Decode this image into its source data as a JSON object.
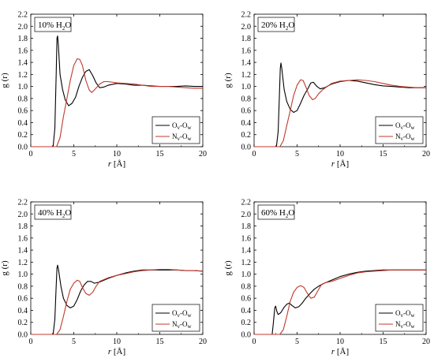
{
  "chart_data": [
    {
      "type": "line",
      "label_prefix": "10% H",
      "label_sub": "2",
      "label_suffix": "O",
      "xlabel_italic": "r",
      "xlabel_rest": " [Å]",
      "ylabel": "g (r)",
      "xlim": [
        0,
        20
      ],
      "ylim": [
        0,
        2.2
      ],
      "xticks": [
        "0",
        "5",
        "10",
        "15",
        "20"
      ],
      "yticks": [
        "0.0",
        "0.2",
        "0.4",
        "0.6",
        "0.8",
        "1.0",
        "1.2",
        "1.4",
        "1.6",
        "1.8",
        "2.0",
        "2.2"
      ],
      "legend_position": "lower-right",
      "series": [
        {
          "name_main": "O",
          "name_sub1": "v",
          "name_mid": "-O",
          "name_sub2": "w",
          "color": "#000000",
          "points": [
            [
              0,
              0
            ],
            [
              2.6,
              0
            ],
            [
              2.8,
              0.3
            ],
            [
              2.95,
              1.2
            ],
            [
              3.05,
              1.8
            ],
            [
              3.12,
              1.84
            ],
            [
              3.2,
              1.7
            ],
            [
              3.4,
              1.2
            ],
            [
              3.7,
              0.95
            ],
            [
              4.0,
              0.78
            ],
            [
              4.4,
              0.68
            ],
            [
              4.8,
              0.72
            ],
            [
              5.2,
              0.82
            ],
            [
              5.6,
              1.0
            ],
            [
              6.0,
              1.15
            ],
            [
              6.4,
              1.25
            ],
            [
              6.8,
              1.28
            ],
            [
              7.2,
              1.18
            ],
            [
              7.6,
              1.06
            ],
            [
              8.0,
              0.98
            ],
            [
              8.5,
              0.99
            ],
            [
              9.0,
              1.02
            ],
            [
              10,
              1.05
            ],
            [
              11,
              1.04
            ],
            [
              12,
              1.02
            ],
            [
              13,
              1.02
            ],
            [
              14,
              1.01
            ],
            [
              15,
              1.0
            ],
            [
              16,
              1.0
            ],
            [
              17,
              1.0
            ],
            [
              18,
              1.01
            ],
            [
              19,
              1.0
            ],
            [
              20,
              1.0
            ]
          ]
        },
        {
          "name_main": "N",
          "name_sub1": "v",
          "name_mid": "-O",
          "name_sub2": "w",
          "color": "#c0392b",
          "points": [
            [
              0,
              0
            ],
            [
              3.0,
              0
            ],
            [
              3.4,
              0.15
            ],
            [
              3.8,
              0.5
            ],
            [
              4.2,
              0.8
            ],
            [
              4.6,
              1.1
            ],
            [
              5.0,
              1.35
            ],
            [
              5.4,
              1.46
            ],
            [
              5.7,
              1.45
            ],
            [
              6.0,
              1.35
            ],
            [
              6.4,
              1.1
            ],
            [
              6.8,
              0.94
            ],
            [
              7.1,
              0.9
            ],
            [
              7.5,
              0.96
            ],
            [
              8.0,
              1.04
            ],
            [
              8.5,
              1.08
            ],
            [
              9,
              1.08
            ],
            [
              10,
              1.06
            ],
            [
              11,
              1.05
            ],
            [
              12,
              1.04
            ],
            [
              13,
              1.02
            ],
            [
              14,
              1.0
            ],
            [
              15,
              1.0
            ],
            [
              16,
              1.0
            ],
            [
              17,
              0.99
            ],
            [
              18,
              0.98
            ],
            [
              19,
              0.97
            ],
            [
              20,
              0.97
            ]
          ]
        }
      ]
    },
    {
      "type": "line",
      "label_prefix": "20% H",
      "label_sub": "2",
      "label_suffix": "O",
      "xlabel_italic": "r",
      "xlabel_rest": " [Å]",
      "ylabel": "g (r)",
      "xlim": [
        0,
        20
      ],
      "ylim": [
        0,
        2.2
      ],
      "xticks": [
        "0",
        "5",
        "10",
        "15",
        "20"
      ],
      "yticks": [
        "0.0",
        "0.2",
        "0.4",
        "0.6",
        "0.8",
        "1.0",
        "1.2",
        "1.4",
        "1.6",
        "1.8",
        "2.0",
        "2.2"
      ],
      "legend_position": "lower-right",
      "series": [
        {
          "name_main": "O",
          "name_sub1": "v",
          "name_mid": "-O",
          "name_sub2": "w",
          "color": "#000000",
          "points": [
            [
              0,
              0
            ],
            [
              2.6,
              0
            ],
            [
              2.8,
              0.25
            ],
            [
              2.95,
              0.9
            ],
            [
              3.05,
              1.3
            ],
            [
              3.12,
              1.39
            ],
            [
              3.22,
              1.3
            ],
            [
              3.5,
              0.95
            ],
            [
              3.8,
              0.75
            ],
            [
              4.2,
              0.62
            ],
            [
              4.6,
              0.57
            ],
            [
              5.0,
              0.6
            ],
            [
              5.4,
              0.72
            ],
            [
              5.8,
              0.85
            ],
            [
              6.2,
              0.95
            ],
            [
              6.6,
              1.06
            ],
            [
              6.9,
              1.07
            ],
            [
              7.3,
              1.0
            ],
            [
              7.7,
              0.96
            ],
            [
              8.2,
              0.98
            ],
            [
              9,
              1.04
            ],
            [
              10,
              1.08
            ],
            [
              11,
              1.1
            ],
            [
              12,
              1.09
            ],
            [
              13,
              1.06
            ],
            [
              14,
              1.03
            ],
            [
              15,
              1.01
            ],
            [
              16,
              1.0
            ],
            [
              17,
              0.99
            ],
            [
              18,
              0.98
            ],
            [
              19,
              0.98
            ],
            [
              20,
              0.98
            ]
          ]
        },
        {
          "name_main": "N",
          "name_sub1": "v",
          "name_mid": "-O",
          "name_sub2": "w",
          "color": "#c0392b",
          "points": [
            [
              0,
              0
            ],
            [
              3.0,
              0
            ],
            [
              3.4,
              0.1
            ],
            [
              3.8,
              0.35
            ],
            [
              4.2,
              0.6
            ],
            [
              4.6,
              0.85
            ],
            [
              5.0,
              1.02
            ],
            [
              5.4,
              1.11
            ],
            [
              5.7,
              1.1
            ],
            [
              6.0,
              1.0
            ],
            [
              6.4,
              0.85
            ],
            [
              6.8,
              0.78
            ],
            [
              7.1,
              0.8
            ],
            [
              7.5,
              0.88
            ],
            [
              8,
              0.95
            ],
            [
              9,
              1.05
            ],
            [
              10,
              1.09
            ],
            [
              11,
              1.1
            ],
            [
              12,
              1.11
            ],
            [
              13,
              1.1
            ],
            [
              14,
              1.08
            ],
            [
              15,
              1.05
            ],
            [
              16,
              1.02
            ],
            [
              17,
              1.0
            ],
            [
              18,
              0.99
            ],
            [
              19,
              0.98
            ],
            [
              20,
              0.98
            ]
          ]
        }
      ]
    },
    {
      "type": "line",
      "label_prefix": "40% H",
      "label_sub": "2",
      "label_suffix": "O",
      "xlabel_italic": "r",
      "xlabel_rest": " [Å]",
      "ylabel": "g (r)",
      "xlim": [
        0,
        20
      ],
      "ylim": [
        0,
        2.2
      ],
      "xticks": [
        "0",
        "5",
        "10",
        "15",
        "20"
      ],
      "yticks": [
        "0.0",
        "0.2",
        "0.4",
        "0.6",
        "0.8",
        "1.0",
        "1.2",
        "1.4",
        "1.6",
        "1.8",
        "2.0",
        "2.2"
      ],
      "legend_position": "lower-right",
      "series": [
        {
          "name_main": "O",
          "name_sub1": "v",
          "name_mid": "-O",
          "name_sub2": "w",
          "color": "#000000",
          "points": [
            [
              0,
              0
            ],
            [
              2.6,
              0
            ],
            [
              2.8,
              0.25
            ],
            [
              2.95,
              0.8
            ],
            [
              3.05,
              1.1
            ],
            [
              3.12,
              1.15
            ],
            [
              3.22,
              1.08
            ],
            [
              3.5,
              0.8
            ],
            [
              3.8,
              0.6
            ],
            [
              4.2,
              0.48
            ],
            [
              4.6,
              0.44
            ],
            [
              5.0,
              0.47
            ],
            [
              5.4,
              0.58
            ],
            [
              5.8,
              0.72
            ],
            [
              6.2,
              0.82
            ],
            [
              6.6,
              0.88
            ],
            [
              7.0,
              0.88
            ],
            [
              7.4,
              0.85
            ],
            [
              8,
              0.87
            ],
            [
              9,
              0.93
            ],
            [
              10,
              0.98
            ],
            [
              11,
              1.02
            ],
            [
              12,
              1.05
            ],
            [
              13,
              1.07
            ],
            [
              14,
              1.07
            ],
            [
              15,
              1.07
            ],
            [
              16,
              1.07
            ],
            [
              17,
              1.07
            ],
            [
              18,
              1.06
            ],
            [
              19,
              1.06
            ],
            [
              20,
              1.05
            ]
          ]
        },
        {
          "name_main": "N",
          "name_sub1": "v",
          "name_mid": "-O",
          "name_sub2": "w",
          "color": "#c0392b",
          "points": [
            [
              0,
              0
            ],
            [
              3.0,
              0
            ],
            [
              3.4,
              0.08
            ],
            [
              3.8,
              0.3
            ],
            [
              4.2,
              0.55
            ],
            [
              4.6,
              0.75
            ],
            [
              5.0,
              0.85
            ],
            [
              5.4,
              0.9
            ],
            [
              5.7,
              0.88
            ],
            [
              6.0,
              0.78
            ],
            [
              6.4,
              0.68
            ],
            [
              6.8,
              0.65
            ],
            [
              7.2,
              0.7
            ],
            [
              7.6,
              0.8
            ],
            [
              8,
              0.88
            ],
            [
              9,
              0.94
            ],
            [
              10,
              0.98
            ],
            [
              11,
              1.01
            ],
            [
              12,
              1.04
            ],
            [
              13,
              1.06
            ],
            [
              14,
              1.07
            ],
            [
              15,
              1.08
            ],
            [
              16,
              1.08
            ],
            [
              17,
              1.07
            ],
            [
              18,
              1.06
            ],
            [
              19,
              1.06
            ],
            [
              20,
              1.05
            ]
          ]
        }
      ]
    },
    {
      "type": "line",
      "label_prefix": "60% H",
      "label_sub": "2",
      "label_suffix": "O",
      "xlabel_italic": "r",
      "xlabel_rest": " [Å]",
      "ylabel": "g (r)",
      "xlim": [
        0,
        20
      ],
      "ylim": [
        0,
        2.2
      ],
      "xticks": [
        "0",
        "5",
        "10",
        "15",
        "20"
      ],
      "yticks": [
        "0.0",
        "0.2",
        "0.4",
        "0.6",
        "0.8",
        "1.0",
        "1.2",
        "1.4",
        "1.6",
        "1.8",
        "2.0",
        "2.2"
      ],
      "legend_position": "lower-right",
      "series": [
        {
          "name_main": "O",
          "name_sub1": "v",
          "name_mid": "-O",
          "name_sub2": "w",
          "color": "#000000",
          "points": [
            [
              0,
              0
            ],
            [
              2.1,
              0
            ],
            [
              2.25,
              0.2
            ],
            [
              2.4,
              0.44
            ],
            [
              2.5,
              0.47
            ],
            [
              2.65,
              0.38
            ],
            [
              2.8,
              0.33
            ],
            [
              3.1,
              0.36
            ],
            [
              3.5,
              0.45
            ],
            [
              3.8,
              0.5
            ],
            [
              4.1,
              0.52
            ],
            [
              4.4,
              0.48
            ],
            [
              4.8,
              0.44
            ],
            [
              5.2,
              0.46
            ],
            [
              5.6,
              0.52
            ],
            [
              6.0,
              0.6
            ],
            [
              6.5,
              0.68
            ],
            [
              7,
              0.75
            ],
            [
              7.5,
              0.8
            ],
            [
              8,
              0.84
            ],
            [
              9,
              0.9
            ],
            [
              10,
              0.96
            ],
            [
              11,
              1.0
            ],
            [
              12,
              1.03
            ],
            [
              13,
              1.05
            ],
            [
              14,
              1.06
            ],
            [
              15,
              1.07
            ],
            [
              16,
              1.07
            ],
            [
              17,
              1.07
            ],
            [
              18,
              1.07
            ],
            [
              19,
              1.07
            ],
            [
              20,
              1.07
            ]
          ]
        },
        {
          "name_main": "N",
          "name_sub1": "v",
          "name_mid": "-O",
          "name_sub2": "w",
          "color": "#c0392b",
          "points": [
            [
              0,
              0
            ],
            [
              3.0,
              0
            ],
            [
              3.4,
              0.08
            ],
            [
              3.8,
              0.3
            ],
            [
              4.2,
              0.55
            ],
            [
              4.6,
              0.7
            ],
            [
              5.0,
              0.78
            ],
            [
              5.4,
              0.81
            ],
            [
              5.8,
              0.78
            ],
            [
              6.2,
              0.68
            ],
            [
              6.6,
              0.6
            ],
            [
              7.0,
              0.62
            ],
            [
              7.4,
              0.72
            ],
            [
              7.8,
              0.82
            ],
            [
              8.3,
              0.86
            ],
            [
              9,
              0.88
            ],
            [
              10,
              0.93
            ],
            [
              11,
              0.98
            ],
            [
              12,
              1.02
            ],
            [
              13,
              1.04
            ],
            [
              14,
              1.05
            ],
            [
              15,
              1.06
            ],
            [
              16,
              1.07
            ],
            [
              17,
              1.07
            ],
            [
              18,
              1.07
            ],
            [
              19,
              1.07
            ],
            [
              20,
              1.07
            ]
          ]
        }
      ]
    }
  ]
}
